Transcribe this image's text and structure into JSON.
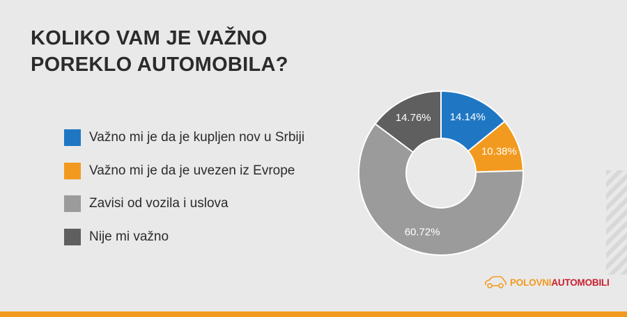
{
  "title": [
    "KOLIKO VAM JE VAŽNO",
    "POREKLO AUTOMOBILA?"
  ],
  "chart_data": {
    "type": "pie",
    "variant": "donut",
    "legend_position": "left",
    "categories": [
      "Važno mi je da je kupljen nov u Srbiji",
      "Važno mi je da je uvezen iz Evrope",
      "Zavisi od vozila i uslova",
      "Nije mi važno"
    ],
    "values": [
      14.14,
      10.38,
      60.72,
      14.76
    ],
    "labels": [
      "14.14%",
      "10.38%",
      "60.72%",
      "14.76%"
    ],
    "colors": [
      "#1f77c4",
      "#f29a1f",
      "#9b9b9b",
      "#5f5f5f"
    ]
  },
  "logo": {
    "part1": "POLOVNI",
    "part2": "AUTOMOBILI"
  }
}
